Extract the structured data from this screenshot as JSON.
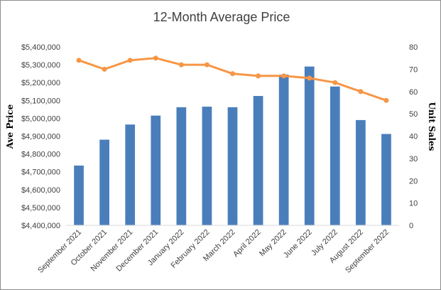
{
  "chart_data": {
    "type": "bar",
    "title": "12-Month Average Price",
    "xlabel": "",
    "ylabel": "Ave Price",
    "y2label": "Unit Sales",
    "categories": [
      "September 2021",
      "October 2021",
      "November 2021",
      "December 2021",
      "January 2022",
      "February 2022",
      "March 2022",
      "April 2022",
      "May 2022",
      "June 2022",
      "July 2022",
      "August 2022",
      "September 2022"
    ],
    "ylim": [
      4400000,
      5400000
    ],
    "y2lim": [
      0,
      80
    ],
    "yticks": [
      "$4,400,000",
      "$4,500,000",
      "$4,600,000",
      "$4,700,000",
      "$4,800,000",
      "$4,900,000",
      "$5,000,000",
      "$5,100,000",
      "$5,200,000",
      "$5,300,000",
      "$5,400,000"
    ],
    "y2ticks": [
      "0",
      "10",
      "20",
      "30",
      "40",
      "50",
      "60",
      "70",
      "80"
    ],
    "grid": false,
    "legend": "none",
    "series": [
      {
        "type": "bar",
        "axis": "left",
        "color": "#4a7ebb",
        "values": [
          4735000,
          4880000,
          4965000,
          5015000,
          5062000,
          5065000,
          5062000,
          5125000,
          5245000,
          5290000,
          5178000,
          4990000,
          4912000
        ]
      },
      {
        "type": "line",
        "axis": "right",
        "color": "#f79646",
        "values": [
          74,
          70,
          74,
          75,
          72,
          72,
          68,
          67,
          67,
          66,
          64,
          60,
          56
        ]
      }
    ]
  }
}
